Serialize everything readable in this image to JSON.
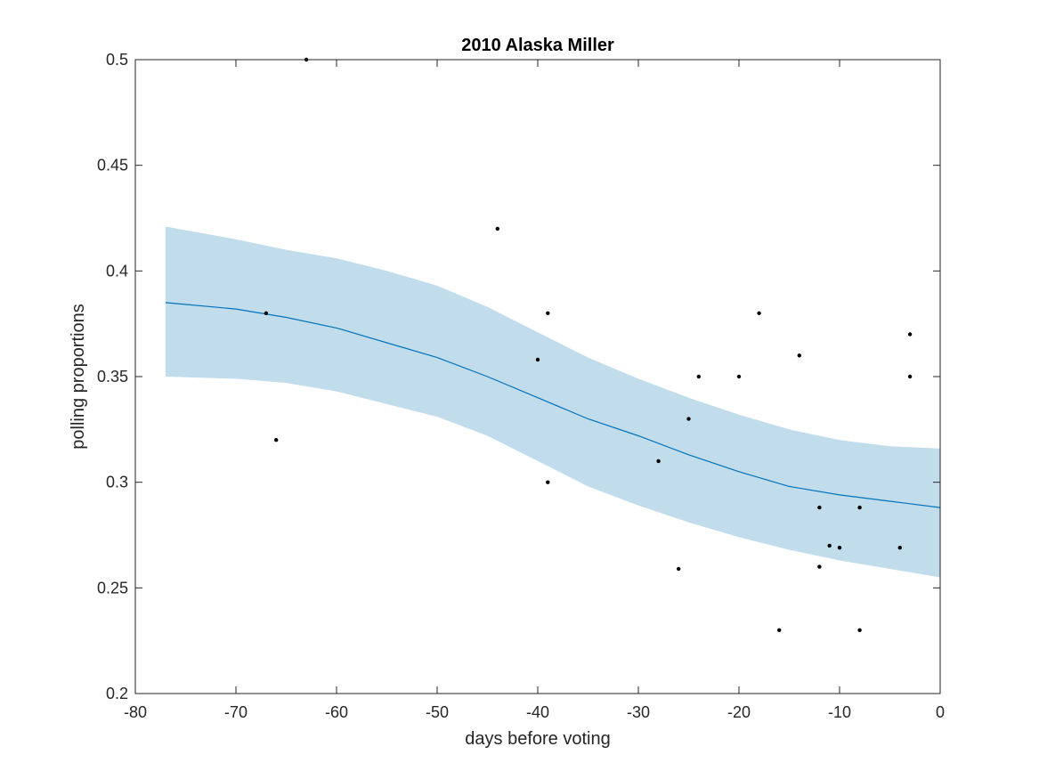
{
  "chart_data": {
    "type": "line",
    "title": "2010 Alaska Miller",
    "xlabel": "days before voting",
    "ylabel": "polling proportions",
    "xlim": [
      -80,
      0
    ],
    "ylim": [
      0.2,
      0.5
    ],
    "x_ticks": [
      -80,
      -70,
      -60,
      -50,
      -40,
      -30,
      -20,
      -10,
      0
    ],
    "x_tick_labels": [
      "-80",
      "-70",
      "-60",
      "-50",
      "-40",
      "-30",
      "-20",
      "-10",
      "0"
    ],
    "y_ticks": [
      0.2,
      0.25,
      0.3,
      0.35,
      0.4,
      0.45,
      0.5
    ],
    "y_tick_labels": [
      "0.2",
      "0.25",
      "0.3",
      "0.35",
      "0.4",
      "0.45",
      "0.5"
    ],
    "grid": false,
    "colors": {
      "trend_line": "#0072BD",
      "confidence_band": "#C1DDEB",
      "points": "#000000",
      "axes": "#262626"
    },
    "trend": {
      "x": [
        -77,
        -70,
        -65,
        -60,
        -55,
        -50,
        -45,
        -40,
        -35,
        -30,
        -25,
        -20,
        -15,
        -10,
        -5,
        0
      ],
      "y": [
        0.385,
        0.382,
        0.378,
        0.373,
        0.366,
        0.359,
        0.35,
        0.34,
        0.33,
        0.322,
        0.313,
        0.305,
        0.298,
        0.294,
        0.291,
        0.288
      ]
    },
    "band_upper": {
      "x": [
        -77,
        -70,
        -65,
        -60,
        -55,
        -50,
        -45,
        -40,
        -35,
        -30,
        -25,
        -20,
        -15,
        -10,
        -5,
        0
      ],
      "y": [
        0.421,
        0.415,
        0.41,
        0.406,
        0.4,
        0.393,
        0.383,
        0.371,
        0.359,
        0.349,
        0.34,
        0.332,
        0.325,
        0.32,
        0.317,
        0.316
      ]
    },
    "band_lower": {
      "x": [
        -77,
        -70,
        -65,
        -60,
        -55,
        -50,
        -45,
        -40,
        -35,
        -30,
        -25,
        -20,
        -15,
        -10,
        -5,
        0
      ],
      "y": [
        0.35,
        0.349,
        0.347,
        0.343,
        0.337,
        0.331,
        0.322,
        0.31,
        0.298,
        0.289,
        0.281,
        0.274,
        0.268,
        0.263,
        0.259,
        0.255
      ]
    },
    "points": [
      {
        "x": -67,
        "y": 0.38
      },
      {
        "x": -66,
        "y": 0.32
      },
      {
        "x": -63,
        "y": 0.5
      },
      {
        "x": -44,
        "y": 0.42
      },
      {
        "x": -40,
        "y": 0.358
      },
      {
        "x": -39,
        "y": 0.38
      },
      {
        "x": -39,
        "y": 0.3
      },
      {
        "x": -28,
        "y": 0.31
      },
      {
        "x": -26,
        "y": 0.259
      },
      {
        "x": -25,
        "y": 0.33
      },
      {
        "x": -24,
        "y": 0.35
      },
      {
        "x": -20,
        "y": 0.35
      },
      {
        "x": -18,
        "y": 0.38
      },
      {
        "x": -16,
        "y": 0.23
      },
      {
        "x": -14,
        "y": 0.36
      },
      {
        "x": -12,
        "y": 0.288
      },
      {
        "x": -12,
        "y": 0.26
      },
      {
        "x": -11,
        "y": 0.27
      },
      {
        "x": -10,
        "y": 0.269
      },
      {
        "x": -8,
        "y": 0.288
      },
      {
        "x": -8,
        "y": 0.23
      },
      {
        "x": -4,
        "y": 0.269
      },
      {
        "x": -3,
        "y": 0.37
      },
      {
        "x": -3,
        "y": 0.35
      }
    ]
  }
}
